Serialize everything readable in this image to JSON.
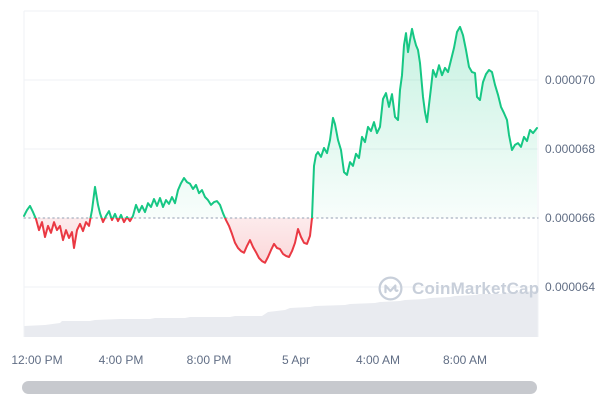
{
  "watermark": {
    "text": "CoinMarketCap"
  },
  "colors": {
    "up_line": "#16c784",
    "down_line": "#ea3943",
    "grid": "#eff2f5",
    "baseline_dots": "#a7b0c0",
    "axis_text": "#616e85",
    "volume_fill": "#e9ebf0",
    "watermark": "#c8cfda",
    "scrollbar": "#c7c9ce"
  },
  "chart_data": {
    "type": "line",
    "title": "",
    "description": "24h cryptocurrency price chart, green above baseline 0.000066 and red below, with faint volume silhouette at bottom",
    "legend": "none",
    "grid": "horizontal",
    "baseline_value": 66,
    "value_unit_multiplier": 1e-06,
    "y_axis": {
      "side": "right",
      "tick_labels": [
        "0.000070",
        "0.000068",
        "0.000066",
        "0.000064"
      ],
      "tick_values": [
        70,
        68,
        66,
        64
      ],
      "gridline_values": [
        72,
        70,
        68,
        64
      ],
      "baseline_dotted_value": 66
    },
    "x_axis": {
      "tick_labels": [
        "12:00 PM",
        "4:00 PM",
        "8:00 PM",
        "5 Apr",
        "4:00 AM",
        "8:00 AM"
      ],
      "tick_x": [
        37,
        121,
        209,
        296,
        378,
        465
      ]
    },
    "series": [
      {
        "name": "price",
        "unit": "1e-6",
        "points": [
          [
            24,
            66.06
          ],
          [
            27,
            66.23
          ],
          [
            30,
            66.35
          ],
          [
            33,
            66.17
          ],
          [
            36,
            65.97
          ],
          [
            39,
            65.65
          ],
          [
            42,
            65.88
          ],
          [
            45,
            65.45
          ],
          [
            48,
            65.77
          ],
          [
            51,
            65.57
          ],
          [
            54,
            65.88
          ],
          [
            57,
            65.65
          ],
          [
            60,
            65.77
          ],
          [
            63,
            65.36
          ],
          [
            66,
            65.65
          ],
          [
            69,
            65.42
          ],
          [
            72,
            65.59
          ],
          [
            74,
            65.13
          ],
          [
            77,
            65.65
          ],
          [
            80,
            65.83
          ],
          [
            83,
            65.62
          ],
          [
            86,
            65.88
          ],
          [
            89,
            65.77
          ],
          [
            92,
            66.23
          ],
          [
            95,
            66.9
          ],
          [
            98,
            66.38
          ],
          [
            100,
            66.14
          ],
          [
            103,
            65.88
          ],
          [
            106,
            66.06
          ],
          [
            109,
            66.2
          ],
          [
            112,
            65.94
          ],
          [
            115,
            66.12
          ],
          [
            118,
            65.91
          ],
          [
            121,
            66.09
          ],
          [
            124,
            65.88
          ],
          [
            127,
            66.03
          ],
          [
            130,
            65.91
          ],
          [
            133,
            66.06
          ],
          [
            136,
            66.38
          ],
          [
            139,
            66.17
          ],
          [
            142,
            66.35
          ],
          [
            145,
            66.17
          ],
          [
            148,
            66.43
          ],
          [
            151,
            66.32
          ],
          [
            154,
            66.55
          ],
          [
            157,
            66.35
          ],
          [
            160,
            66.58
          ],
          [
            163,
            66.32
          ],
          [
            166,
            66.52
          ],
          [
            169,
            66.41
          ],
          [
            172,
            66.61
          ],
          [
            175,
            66.43
          ],
          [
            178,
            66.81
          ],
          [
            181,
            67.01
          ],
          [
            184,
            67.16
          ],
          [
            187,
            67.04
          ],
          [
            190,
            66.99
          ],
          [
            193,
            66.84
          ],
          [
            196,
            66.96
          ],
          [
            199,
            66.72
          ],
          [
            202,
            66.81
          ],
          [
            205,
            66.61
          ],
          [
            208,
            66.52
          ],
          [
            211,
            66.38
          ],
          [
            214,
            66.46
          ],
          [
            217,
            66.49
          ],
          [
            220,
            66.38
          ],
          [
            223,
            66.14
          ],
          [
            226,
            65.94
          ],
          [
            229,
            65.77
          ],
          [
            232,
            65.54
          ],
          [
            235,
            65.28
          ],
          [
            238,
            65.13
          ],
          [
            241,
            65.04
          ],
          [
            244,
            64.99
          ],
          [
            247,
            65.19
          ],
          [
            250,
            65.36
          ],
          [
            253,
            65.16
          ],
          [
            256,
            65.01
          ],
          [
            259,
            64.84
          ],
          [
            262,
            64.75
          ],
          [
            265,
            64.7
          ],
          [
            268,
            64.87
          ],
          [
            271,
            65.07
          ],
          [
            274,
            65.25
          ],
          [
            277,
            65.13
          ],
          [
            280,
            65.1
          ],
          [
            283,
            64.96
          ],
          [
            286,
            64.9
          ],
          [
            289,
            64.87
          ],
          [
            292,
            65.04
          ],
          [
            295,
            65.28
          ],
          [
            298,
            65.68
          ],
          [
            301,
            65.45
          ],
          [
            304,
            65.28
          ],
          [
            307,
            65.25
          ],
          [
            310,
            65.48
          ],
          [
            312,
            66.0
          ],
          [
            314,
            67.51
          ],
          [
            316,
            67.83
          ],
          [
            318,
            67.91
          ],
          [
            321,
            67.77
          ],
          [
            324,
            68.03
          ],
          [
            327,
            67.88
          ],
          [
            330,
            68.26
          ],
          [
            333,
            68.9
          ],
          [
            335,
            68.72
          ],
          [
            338,
            68.26
          ],
          [
            341,
            67.97
          ],
          [
            344,
            67.33
          ],
          [
            347,
            67.25
          ],
          [
            350,
            67.62
          ],
          [
            353,
            67.51
          ],
          [
            356,
            67.86
          ],
          [
            359,
            67.74
          ],
          [
            362,
            68.35
          ],
          [
            365,
            68.2
          ],
          [
            368,
            68.64
          ],
          [
            371,
            68.52
          ],
          [
            374,
            68.78
          ],
          [
            377,
            68.46
          ],
          [
            380,
            68.64
          ],
          [
            383,
            69.45
          ],
          [
            386,
            69.62
          ],
          [
            389,
            69.22
          ],
          [
            392,
            69.59
          ],
          [
            395,
            68.93
          ],
          [
            398,
            68.84
          ],
          [
            400,
            69.71
          ],
          [
            402,
            70.14
          ],
          [
            404,
            71.01
          ],
          [
            406,
            71.36
          ],
          [
            408,
            70.81
          ],
          [
            410,
            71.16
          ],
          [
            412,
            71.48
          ],
          [
            414,
            71.22
          ],
          [
            416,
            71.01
          ],
          [
            418,
            70.87
          ],
          [
            420,
            70.49
          ],
          [
            423,
            69.51
          ],
          [
            425,
            69.07
          ],
          [
            427,
            68.78
          ],
          [
            429,
            69.28
          ],
          [
            431,
            69.77
          ],
          [
            433,
            70.29
          ],
          [
            436,
            70.09
          ],
          [
            439,
            70.43
          ],
          [
            442,
            70.14
          ],
          [
            445,
            70.35
          ],
          [
            448,
            70.23
          ],
          [
            451,
            70.58
          ],
          [
            454,
            70.93
          ],
          [
            457,
            71.39
          ],
          [
            460,
            71.54
          ],
          [
            463,
            71.3
          ],
          [
            466,
            70.87
          ],
          [
            469,
            70.38
          ],
          [
            472,
            70.23
          ],
          [
            475,
            70.2
          ],
          [
            477,
            69.51
          ],
          [
            480,
            69.42
          ],
          [
            483,
            69.94
          ],
          [
            486,
            70.17
          ],
          [
            489,
            70.29
          ],
          [
            492,
            70.23
          ],
          [
            495,
            69.86
          ],
          [
            498,
            69.57
          ],
          [
            501,
            69.22
          ],
          [
            504,
            69.04
          ],
          [
            507,
            68.84
          ],
          [
            509,
            68.41
          ],
          [
            512,
            67.97
          ],
          [
            515,
            68.12
          ],
          [
            518,
            68.17
          ],
          [
            521,
            68.06
          ],
          [
            524,
            68.35
          ],
          [
            527,
            68.23
          ],
          [
            530,
            68.55
          ],
          [
            533,
            68.46
          ],
          [
            537,
            68.61
          ]
        ]
      }
    ],
    "volume_silhouette_heights": [
      [
        24,
        11
      ],
      [
        45,
        12
      ],
      [
        60,
        14
      ],
      [
        62,
        16
      ],
      [
        90,
        16
      ],
      [
        95,
        17
      ],
      [
        120,
        18
      ],
      [
        150,
        18
      ],
      [
        155,
        19
      ],
      [
        185,
        19
      ],
      [
        190,
        20
      ],
      [
        230,
        20
      ],
      [
        235,
        21
      ],
      [
        262,
        21
      ],
      [
        268,
        25
      ],
      [
        285,
        27
      ],
      [
        290,
        29
      ],
      [
        310,
        30
      ],
      [
        315,
        31
      ],
      [
        345,
        32
      ],
      [
        350,
        33
      ],
      [
        375,
        34
      ],
      [
        380,
        35
      ],
      [
        400,
        36
      ],
      [
        405,
        37
      ],
      [
        425,
        38
      ],
      [
        430,
        39
      ],
      [
        450,
        40
      ],
      [
        455,
        41
      ],
      [
        475,
        42
      ],
      [
        480,
        43
      ],
      [
        500,
        43
      ],
      [
        505,
        44
      ],
      [
        520,
        45
      ],
      [
        538,
        46
      ]
    ]
  }
}
